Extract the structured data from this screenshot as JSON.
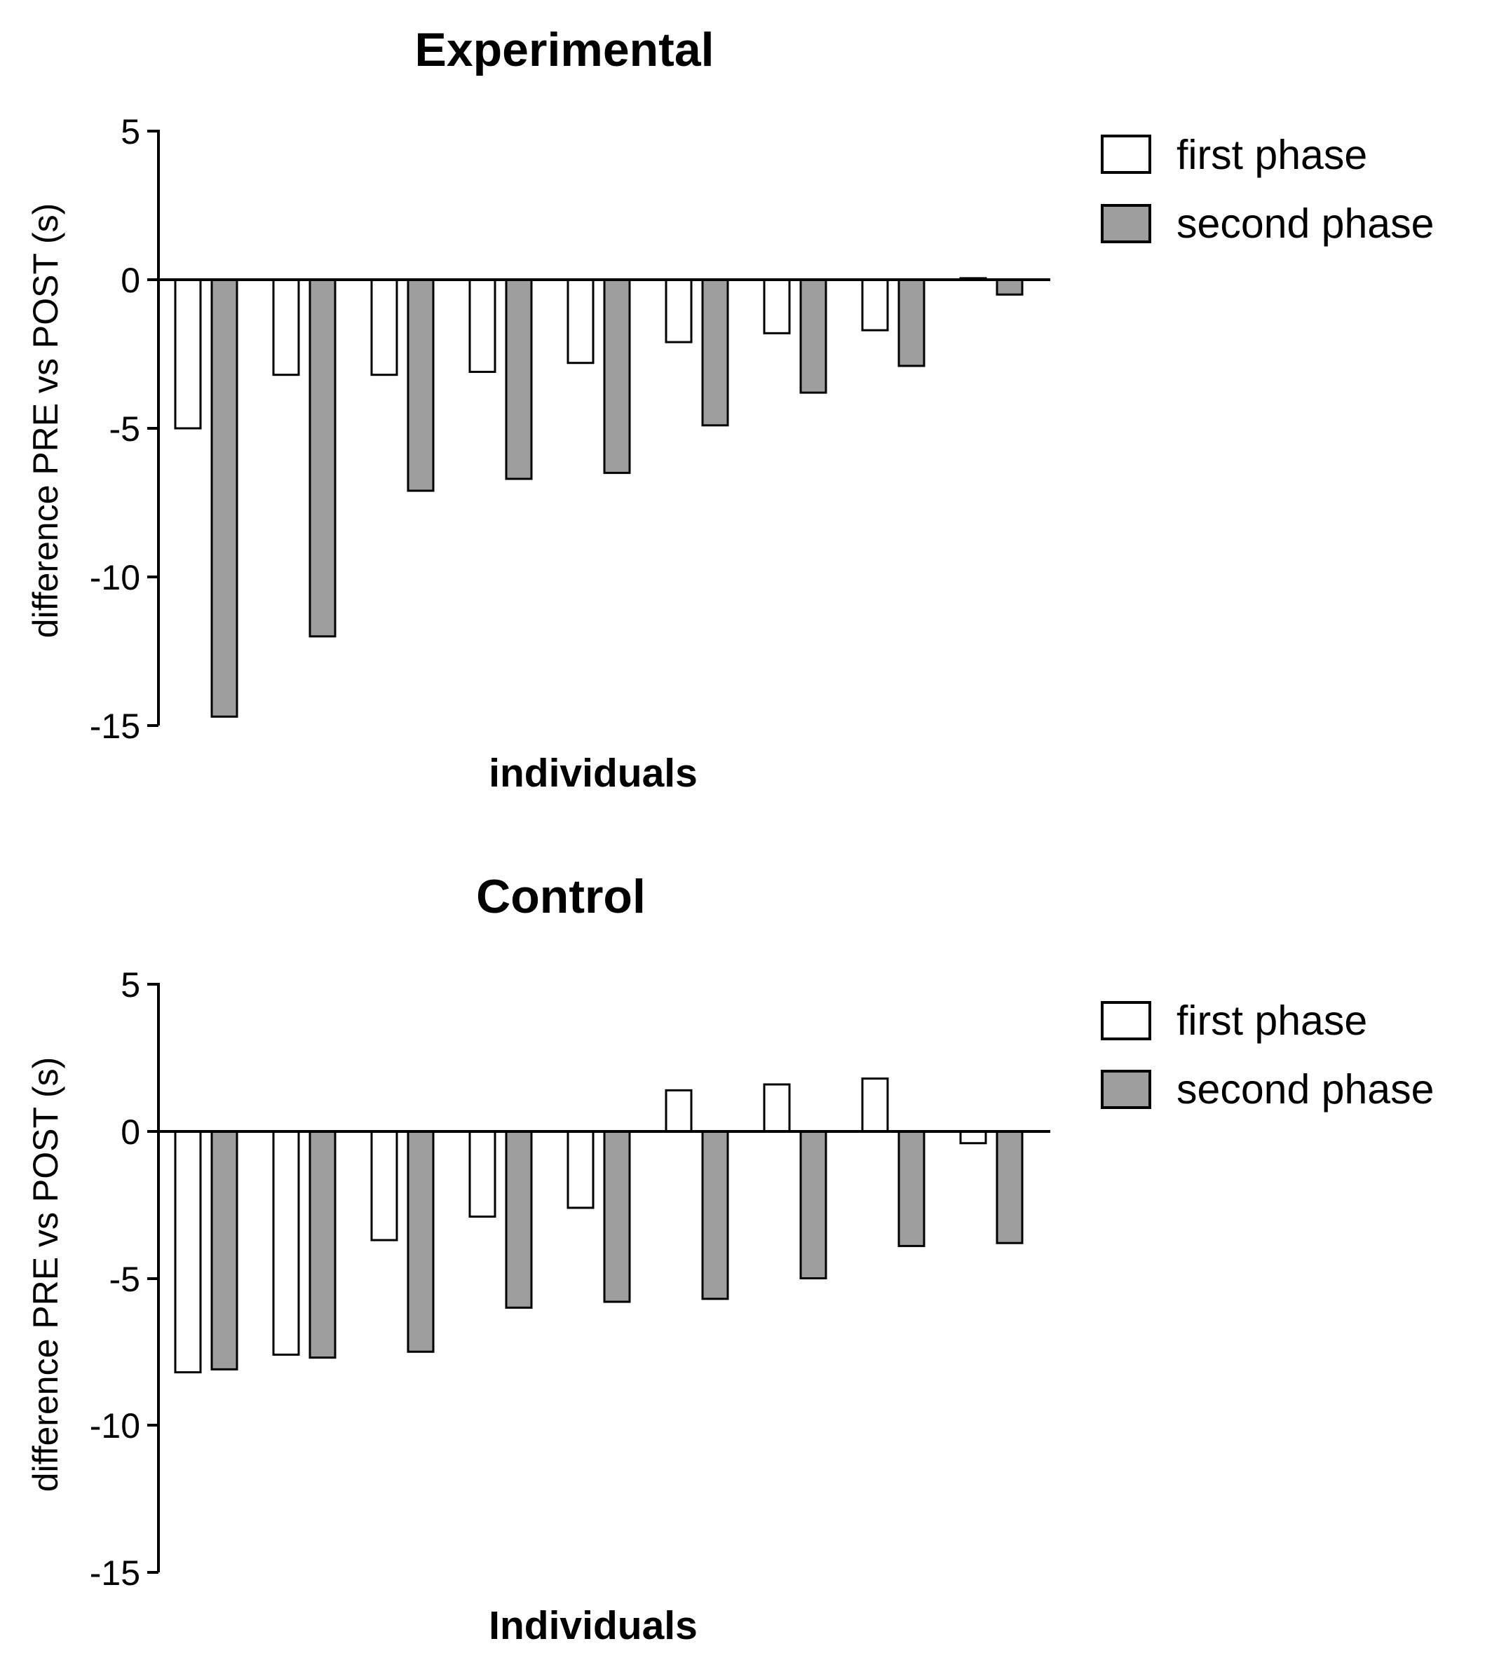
{
  "colors": {
    "first_phase_fill": "#ffffff",
    "second_phase_fill": "#9e9e9e",
    "stroke": "#000000"
  },
  "chart_data": [
    {
      "type": "bar",
      "title": "Experimental",
      "xlabel": "individuals",
      "ylabel": "difference PRE vs POST (s)",
      "ylim": [
        -15,
        5
      ],
      "yticks": [
        5,
        0,
        -5,
        -10,
        -15
      ],
      "categories": [
        "1",
        "2",
        "3",
        "4",
        "5",
        "6",
        "7",
        "8",
        "9"
      ],
      "show_category_labels": false,
      "legend": {
        "placement": "top-right",
        "entries": [
          "first phase",
          "second phase"
        ]
      },
      "series": [
        {
          "name": "first phase",
          "values": [
            -5.0,
            -3.2,
            -3.2,
            -3.1,
            -2.8,
            -2.1,
            -1.8,
            -1.7,
            0.05
          ]
        },
        {
          "name": "second phase",
          "values": [
            -14.7,
            -12.0,
            -7.1,
            -6.7,
            -6.5,
            -4.9,
            -3.8,
            -2.9,
            -0.5
          ]
        }
      ]
    },
    {
      "type": "bar",
      "title": "Control",
      "xlabel": "Individuals",
      "ylabel": "difference PRE vs POST (s)",
      "ylim": [
        -15,
        5
      ],
      "yticks": [
        5,
        0,
        -5,
        -10,
        -15
      ],
      "categories": [
        "1",
        "2",
        "3",
        "4",
        "5",
        "6",
        "7",
        "8",
        "9"
      ],
      "show_category_labels": false,
      "legend": {
        "placement": "top-right",
        "entries": [
          "first phase",
          "second phase"
        ]
      },
      "series": [
        {
          "name": "first phase",
          "values": [
            -8.2,
            -7.6,
            -3.7,
            -2.9,
            -2.6,
            1.4,
            1.6,
            1.8,
            -0.4
          ]
        },
        {
          "name": "second phase",
          "values": [
            -8.1,
            -7.7,
            -7.5,
            -6.0,
            -5.8,
            -5.7,
            -5.0,
            -3.9,
            -3.8
          ]
        }
      ]
    }
  ]
}
